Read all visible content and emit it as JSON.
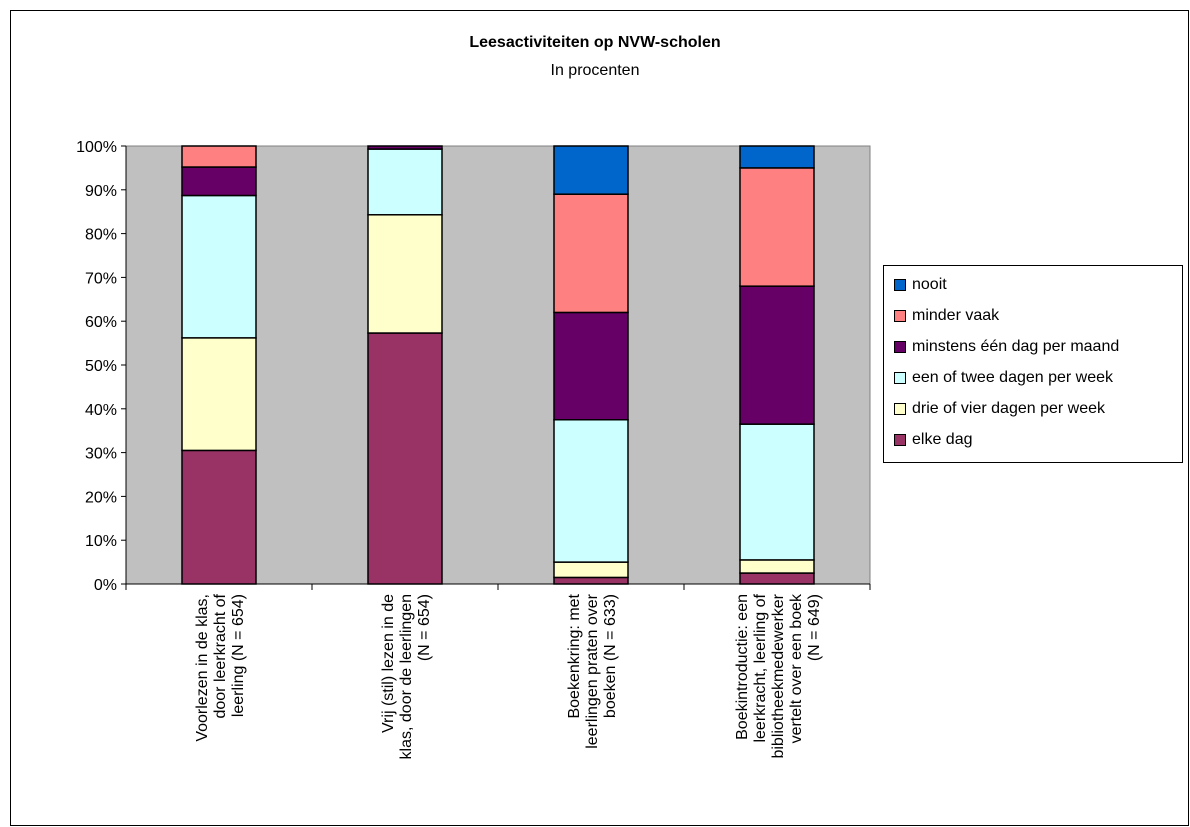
{
  "chart_data": {
    "type": "bar",
    "stacked": true,
    "percent": true,
    "title": "Leesactiviteiten op NVW-scholen",
    "subtitle": "In procenten",
    "ylim": [
      0,
      100
    ],
    "yticks": [
      "0%",
      "10%",
      "20%",
      "30%",
      "40%",
      "50%",
      "60%",
      "70%",
      "80%",
      "90%",
      "100%"
    ],
    "grid": false,
    "plot_background": "#c0c0c0",
    "legend_position": "right",
    "categories": [
      [
        "Voorlezen in de klas,",
        "door leerkracht of",
        "leerling (N = 654)"
      ],
      [
        "Vrij (stil) lezen in de",
        "klas, door de leerlingen",
        "(N = 654)"
      ],
      [
        "Boekenkring: met",
        "leerlingen praten over",
        "boeken (N = 633)"
      ],
      [
        "Boekintroductie: een",
        "leerkracht, leerling of",
        "bibliotheekmedewerker",
        "vertelt over een boek",
        "(N = 649)"
      ]
    ],
    "series": [
      {
        "name": "elke dag",
        "color": "#993366",
        "values": [
          30.5,
          57.3,
          1.5,
          2.5
        ]
      },
      {
        "name": "drie of vier dagen per week",
        "color": "#ffffcc",
        "values": [
          25.7,
          27.0,
          3.5,
          3.0
        ]
      },
      {
        "name": "een of twee dagen per week",
        "color": "#ccffff",
        "values": [
          32.5,
          15.0,
          32.5,
          31.0
        ]
      },
      {
        "name": "minstens één dag per maand",
        "color": "#660066",
        "values": [
          6.5,
          0.7,
          24.5,
          31.5
        ]
      },
      {
        "name": "minder vaak",
        "color": "#ff8080",
        "values": [
          4.8,
          0.0,
          27.0,
          27.0
        ]
      },
      {
        "name": "nooit",
        "color": "#0066cc",
        "values": [
          0.0,
          0.0,
          11.0,
          5.0
        ]
      }
    ]
  }
}
